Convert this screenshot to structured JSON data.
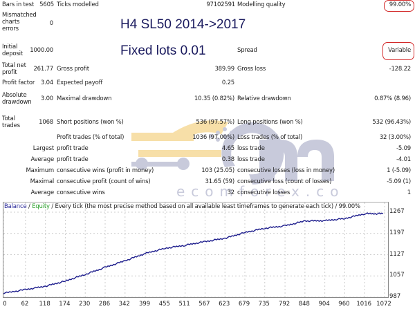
{
  "overlay": {
    "title_line1": "H4 SL50 2014->2017",
    "title_line2": "Fixed lots 0.01",
    "watermark_text": "ecomforex.com",
    "highlight_color": "#d32a2a",
    "title_color": "#1a1a5e"
  },
  "report": {
    "bars_in_test_label": "Bars in test",
    "bars_in_test": "5605",
    "ticks_modelled_label": "Ticks modelled",
    "ticks_modelled": "97102591",
    "modelling_quality_label": "Modelling quality",
    "modelling_quality": "99.00%",
    "mismatched_label_1": "Mismatched",
    "mismatched_label_2": "charts",
    "mismatched_label_3": "errors",
    "mismatched": "0",
    "initial_deposit_label_1": "Initial",
    "initial_deposit_label_2": "deposit",
    "initial_deposit": "1000.00",
    "spread_label": "Spread",
    "spread": "Variable",
    "total_net_profit_label_1": "Total net",
    "total_net_profit_label_2": "profit",
    "total_net_profit": "261.77",
    "gross_profit_label": "Gross profit",
    "gross_profit": "389.99",
    "gross_loss_label": "Gross loss",
    "gross_loss": "-128.22",
    "profit_factor_label": "Profit factor",
    "profit_factor": "3.04",
    "expected_payoff_label": "Expected payoff",
    "expected_payoff": "0.25",
    "absolute_drawdown_label_1": "Absolute",
    "absolute_drawdown_label_2": "drawdown",
    "absolute_drawdown": "3.00",
    "maximal_drawdown_label": "Maximal drawdown",
    "maximal_drawdown": "10.35 (0.82%)",
    "relative_drawdown_label": "Relative drawdown",
    "relative_drawdown": "0.87% (8.96)",
    "total_trades_label_1": "Total",
    "total_trades_label_2": "trades",
    "total_trades": "1068",
    "short_positions_label": "Short positions (won %)",
    "short_positions": "536 (97.57%)",
    "long_positions_label": "Long positions (won %)",
    "long_positions": "532 (96.43%)",
    "profit_trades_label": "Profit trades (% of total)",
    "profit_trades": "1036 (97.00%)",
    "loss_trades_label": "Loss trades (% of total)",
    "loss_trades": "32 (3.00%)",
    "largest_label": "Largest",
    "largest_profit_label": "profit trade",
    "largest_profit": "4.65",
    "largest_loss_label": "loss trade",
    "largest_loss": "-5.09",
    "average_label": "Average",
    "average_profit_label": "profit trade",
    "average_profit": "0.38",
    "average_loss_label": "loss trade",
    "average_loss": "-4.01",
    "maximum_label": "Maximum",
    "max_consec_wins_label": "consecutive wins (profit in money)",
    "max_consec_wins": "103 (25.05)",
    "max_consec_losses_label": "consecutive losses (loss in money)",
    "max_consec_losses": "1 (-5.09)",
    "maximal_label": "Maximal",
    "maximal_consec_profit_label": "consecutive profit (count of wins)",
    "maximal_consec_profit": "31.65 (59)",
    "maximal_consec_loss_label": "consecutive loss (count of losses)",
    "maximal_consec_loss": "-5.09 (1)",
    "average2_label": "Average",
    "avg_consec_wins_label": "consecutive wins",
    "avg_consec_wins": "32",
    "avg_consec_losses_label": "consecutive losses",
    "avg_consec_losses": "1"
  },
  "chart": {
    "legend_balance": "Balance",
    "legend_sep1": " / ",
    "legend_equity": "Equity",
    "legend_rest": " / Every tick (the most precise method based on all available least timeframes to generate each tick) / 99.00%",
    "balance_color": "#1c1c8c",
    "equity_color": "#2aa02a",
    "y_ticks": [
      "1267",
      "1197",
      "1127",
      "1057",
      "987"
    ],
    "x_ticks": [
      "0",
      "62",
      "118",
      "174",
      "230",
      "286",
      "342",
      "399",
      "455",
      "511",
      "567",
      "623",
      "679",
      "735",
      "792",
      "848",
      "904",
      "960",
      "1016",
      "1072"
    ]
  },
  "chart_data": {
    "type": "line",
    "title": "Balance / Equity / Every tick (the most precise method based on all available least timeframes to generate each tick) / 99.00%",
    "xlabel": "",
    "ylabel": "",
    "ylim": [
      987,
      1267
    ],
    "xlim": [
      0,
      1072
    ],
    "grid": true,
    "legend": [
      "Balance",
      "Equity"
    ],
    "x_ticks": [
      0,
      62,
      118,
      174,
      230,
      286,
      342,
      399,
      455,
      511,
      567,
      623,
      679,
      735,
      792,
      848,
      904,
      960,
      1016,
      1072
    ],
    "y_ticks": [
      987,
      1057,
      1127,
      1197,
      1267
    ],
    "series": [
      {
        "name": "Balance",
        "x": [
          0,
          62,
          118,
          174,
          230,
          286,
          342,
          399,
          455,
          511,
          567,
          623,
          679,
          735,
          792,
          848,
          904,
          960,
          1016,
          1068
        ],
        "values": [
          1000,
          1012,
          1023,
          1040,
          1062,
          1085,
          1107,
          1131,
          1148,
          1158,
          1170,
          1181,
          1200,
          1214,
          1222,
          1238,
          1239,
          1246,
          1262,
          1262
        ]
      }
    ]
  }
}
